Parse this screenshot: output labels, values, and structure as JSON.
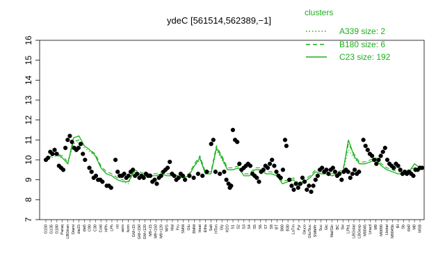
{
  "chart_data": {
    "type": "line",
    "title": "ydeC [561514,562389,−1]",
    "ylim": [
      7,
      16
    ],
    "yticks": [
      7,
      8,
      9,
      10,
      11,
      12,
      13,
      14,
      15,
      16
    ],
    "xticks": [
      "G150",
      "G135",
      "G180",
      "Paraq",
      "LBGtran",
      "Diami",
      "dia15",
      "dia5",
      "C90",
      "C30",
      "Cold",
      "HPh",
      "LPh",
      "nit",
      "aero",
      "ferm",
      "GM+15",
      "GM+150",
      "GM+120",
      "M9+15",
      "M9+150",
      "M9+120",
      "M/G",
      "Mal",
      "Fru",
      "SMM",
      "Glu",
      "BMM",
      "Heat",
      "Etha",
      "Salt",
      "HTim",
      "Gly",
      "H2O",
      "S1",
      "S2",
      "S3",
      "S4",
      "S5",
      "S6",
      "S7",
      "S8",
      "BT",
      "B60",
      "B30",
      "LoTm",
      "Pyr",
      "Gluco",
      "Glu/Suc",
      "SMMPr",
      "Suc",
      "Glc",
      "Mal/Glc",
      "BC",
      "Sw",
      "LPh1",
      "LBGstat",
      "LBGexp",
      "M0045",
      "Uracil",
      "M9",
      "M0090",
      "Lbstat",
      "M0045b",
      "BI",
      "Sb",
      "dia0",
      "M0",
      "MSB"
    ],
    "series": [
      {
        "name": "A339 size: 2",
        "style": "dotted",
        "values": [
          10.0,
          10.1,
          10.2,
          10.1,
          9.8,
          10.8,
          10.9,
          10.6,
          10.4,
          10.2,
          9.6,
          9.3,
          9.2,
          9.0,
          8.9,
          8.8,
          9.4,
          9.3,
          9.2,
          9.2,
          9.2,
          9.3,
          9.2,
          9.2,
          9.1,
          9.1,
          9.2,
          9.7,
          10.0,
          9.3,
          9.3,
          10.5,
          10.0,
          9.5,
          9.5,
          9.6,
          9.2,
          9.2,
          9.5,
          9.5,
          9.3,
          9.3,
          9.2,
          8.8,
          8.9,
          9.0,
          8.7,
          8.9,
          9.1,
          9.4,
          9.3,
          9.3,
          9.2,
          9.3,
          9.4,
          10.5,
          10.1,
          9.8,
          9.8,
          9.9,
          10.0,
          9.7,
          9.5,
          9.4,
          9.3,
          9.3,
          9.4,
          9.5,
          9.6
        ]
      },
      {
        "name": "B180 size: 6",
        "style": "dashed",
        "values": [
          10.1,
          10.2,
          10.3,
          10.2,
          9.9,
          10.9,
          11.0,
          10.7,
          10.5,
          10.3,
          9.7,
          9.4,
          9.3,
          9.1,
          9.0,
          8.9,
          9.5,
          9.4,
          9.3,
          9.3,
          9.3,
          9.4,
          9.3,
          9.3,
          9.2,
          9.2,
          9.3,
          9.8,
          10.2,
          9.4,
          9.4,
          10.7,
          10.2,
          9.6,
          9.6,
          9.7,
          9.3,
          9.3,
          9.6,
          9.6,
          9.4,
          9.4,
          9.3,
          8.9,
          9.0,
          9.1,
          8.8,
          9.0,
          9.2,
          9.5,
          9.4,
          9.4,
          9.3,
          9.4,
          9.5,
          10.8,
          10.3,
          9.9,
          9.9,
          10.0,
          10.1,
          9.8,
          9.6,
          9.5,
          9.4,
          9.4,
          9.5,
          9.6,
          9.7
        ]
      },
      {
        "name": "C23 size: 192",
        "style": "solid",
        "values": [
          10.0,
          10.2,
          10.3,
          10.1,
          9.8,
          11.1,
          11.2,
          10.7,
          10.5,
          10.2,
          9.6,
          9.3,
          9.2,
          9.0,
          8.9,
          8.9,
          9.4,
          9.3,
          9.2,
          9.2,
          9.2,
          9.3,
          9.2,
          9.2,
          9.2,
          9.1,
          9.2,
          9.7,
          10.1,
          9.3,
          9.3,
          10.6,
          10.1,
          9.5,
          9.5,
          9.6,
          9.2,
          9.2,
          9.5,
          9.5,
          9.3,
          9.3,
          9.2,
          8.8,
          8.9,
          9.0,
          8.7,
          8.9,
          9.1,
          9.4,
          9.3,
          9.3,
          9.2,
          9.3,
          9.4,
          11.0,
          10.2,
          9.8,
          9.8,
          9.9,
          10.0,
          9.7,
          9.5,
          9.4,
          9.3,
          9.3,
          9.4,
          9.8,
          9.6
        ]
      }
    ],
    "points": [
      [
        0,
        10.0
      ],
      [
        0.5,
        10.1
      ],
      [
        1,
        10.4
      ],
      [
        1.5,
        10.3
      ],
      [
        2,
        10.5
      ],
      [
        2.5,
        10.3
      ],
      [
        3,
        9.7
      ],
      [
        3.5,
        9.6
      ],
      [
        4,
        9.5
      ],
      [
        4.5,
        10.6
      ],
      [
        5,
        11.0
      ],
      [
        5.5,
        11.2
      ],
      [
        6,
        10.9
      ],
      [
        6.5,
        10.6
      ],
      [
        7,
        10.5
      ],
      [
        7.5,
        10.6
      ],
      [
        8,
        10.8
      ],
      [
        8.5,
        10.3
      ],
      [
        9,
        10.0
      ],
      [
        10,
        9.6
      ],
      [
        10.5,
        9.4
      ],
      [
        11,
        9.1
      ],
      [
        11.5,
        9.2
      ],
      [
        12,
        9.0
      ],
      [
        12.5,
        9.0
      ],
      [
        13,
        8.9
      ],
      [
        14,
        8.7
      ],
      [
        14.5,
        8.7
      ],
      [
        15,
        8.6
      ],
      [
        16,
        10.0
      ],
      [
        16.5,
        9.4
      ],
      [
        17,
        9.2
      ],
      [
        17.5,
        9.2
      ],
      [
        18,
        9.3
      ],
      [
        18.5,
        9.1
      ],
      [
        19,
        9.2
      ],
      [
        19.5,
        9.4
      ],
      [
        20,
        9.5
      ],
      [
        20.5,
        9.2
      ],
      [
        21,
        9.3
      ],
      [
        21.5,
        9.1
      ],
      [
        22,
        9.2
      ],
      [
        22.5,
        9.1
      ],
      [
        23,
        9.3
      ],
      [
        23.5,
        9.2
      ],
      [
        24,
        9.2
      ],
      [
        24.5,
        8.9
      ],
      [
        25,
        9.0
      ],
      [
        25.5,
        8.8
      ],
      [
        26,
        9.1
      ],
      [
        26.5,
        9.2
      ],
      [
        27,
        9.4
      ],
      [
        27.5,
        9.5
      ],
      [
        28,
        9.6
      ],
      [
        28.5,
        9.9
      ],
      [
        29,
        9.3
      ],
      [
        29.5,
        9.2
      ],
      [
        30,
        9.0
      ],
      [
        30.5,
        9.1
      ],
      [
        31,
        9.3
      ],
      [
        31.5,
        9.2
      ],
      [
        32,
        9.0
      ],
      [
        33,
        9.2
      ],
      [
        34,
        9.1
      ],
      [
        35,
        9.3
      ],
      [
        36,
        9.2
      ],
      [
        37,
        9.4
      ],
      [
        38,
        10.8
      ],
      [
        38.5,
        11.0
      ],
      [
        39,
        9.4
      ],
      [
        40,
        9.3
      ],
      [
        41,
        9.4
      ],
      [
        41.5,
        9.0
      ],
      [
        42,
        8.8
      ],
      [
        42.3,
        8.6
      ],
      [
        42.6,
        8.7
      ],
      [
        43,
        11.5
      ],
      [
        43.5,
        11.0
      ],
      [
        44,
        10.9
      ],
      [
        44.5,
        9.8
      ],
      [
        45,
        9.5
      ],
      [
        45.5,
        9.6
      ],
      [
        46,
        9.7
      ],
      [
        46.5,
        9.8
      ],
      [
        47,
        9.7
      ],
      [
        47.5,
        9.3
      ],
      [
        48,
        9.2
      ],
      [
        48.5,
        9.1
      ],
      [
        49,
        8.9
      ],
      [
        49.5,
        9.4
      ],
      [
        50,
        9.5
      ],
      [
        50.5,
        9.7
      ],
      [
        51,
        9.6
      ],
      [
        51.5,
        9.8
      ],
      [
        52,
        10.0
      ],
      [
        52.5,
        9.7
      ],
      [
        53,
        9.4
      ],
      [
        53.5,
        9.2
      ],
      [
        54,
        9.1
      ],
      [
        54.5,
        9.5
      ],
      [
        55,
        11.0
      ],
      [
        55.3,
        10.7
      ],
      [
        56,
        9.0
      ],
      [
        56.5,
        8.7
      ],
      [
        57,
        8.5
      ],
      [
        57.5,
        8.8
      ],
      [
        58,
        8.6
      ],
      [
        58.5,
        8.8
      ],
      [
        59,
        9.1
      ],
      [
        59.5,
        8.9
      ],
      [
        60,
        8.5
      ],
      [
        60.5,
        8.7
      ],
      [
        61,
        8.4
      ],
      [
        61.5,
        8.7
      ],
      [
        62,
        9.0
      ],
      [
        62.5,
        9.2
      ],
      [
        63,
        9.5
      ],
      [
        63.5,
        9.6
      ],
      [
        64,
        9.4
      ],
      [
        64.5,
        9.5
      ],
      [
        65,
        9.3
      ],
      [
        65.5,
        9.5
      ],
      [
        66,
        9.6
      ],
      [
        66.5,
        9.4
      ],
      [
        67,
        9.2
      ],
      [
        67.5,
        9.3
      ],
      [
        68,
        9.0
      ],
      [
        68.5,
        9.4
      ],
      [
        69,
        9.5
      ],
      [
        69.5,
        9.4
      ],
      [
        70,
        9.1
      ],
      [
        70.5,
        9.3
      ],
      [
        71,
        9.5
      ],
      [
        71.5,
        9.3
      ],
      [
        72,
        9.4
      ],
      [
        73,
        11.0
      ],
      [
        73.5,
        10.7
      ],
      [
        74,
        10.5
      ],
      [
        74.5,
        10.3
      ],
      [
        75,
        10.2
      ],
      [
        75.5,
        10.0
      ],
      [
        76,
        9.8
      ],
      [
        76.5,
        10.0
      ],
      [
        77,
        10.2
      ],
      [
        77.5,
        10.4
      ],
      [
        78,
        10.6
      ],
      [
        78.5,
        10.0
      ],
      [
        79,
        9.8
      ],
      [
        79.5,
        9.7
      ],
      [
        80,
        9.6
      ],
      [
        80.5,
        9.8
      ],
      [
        81,
        9.7
      ],
      [
        81.5,
        9.5
      ],
      [
        82,
        9.3
      ],
      [
        82.5,
        9.4
      ],
      [
        83,
        9.3
      ],
      [
        83.5,
        9.4
      ],
      [
        84,
        9.3
      ],
      [
        84.5,
        9.2
      ],
      [
        85,
        9.5
      ],
      [
        85.5,
        9.5
      ],
      [
        86,
        9.6
      ],
      [
        86.5,
        9.6
      ]
    ]
  }
}
